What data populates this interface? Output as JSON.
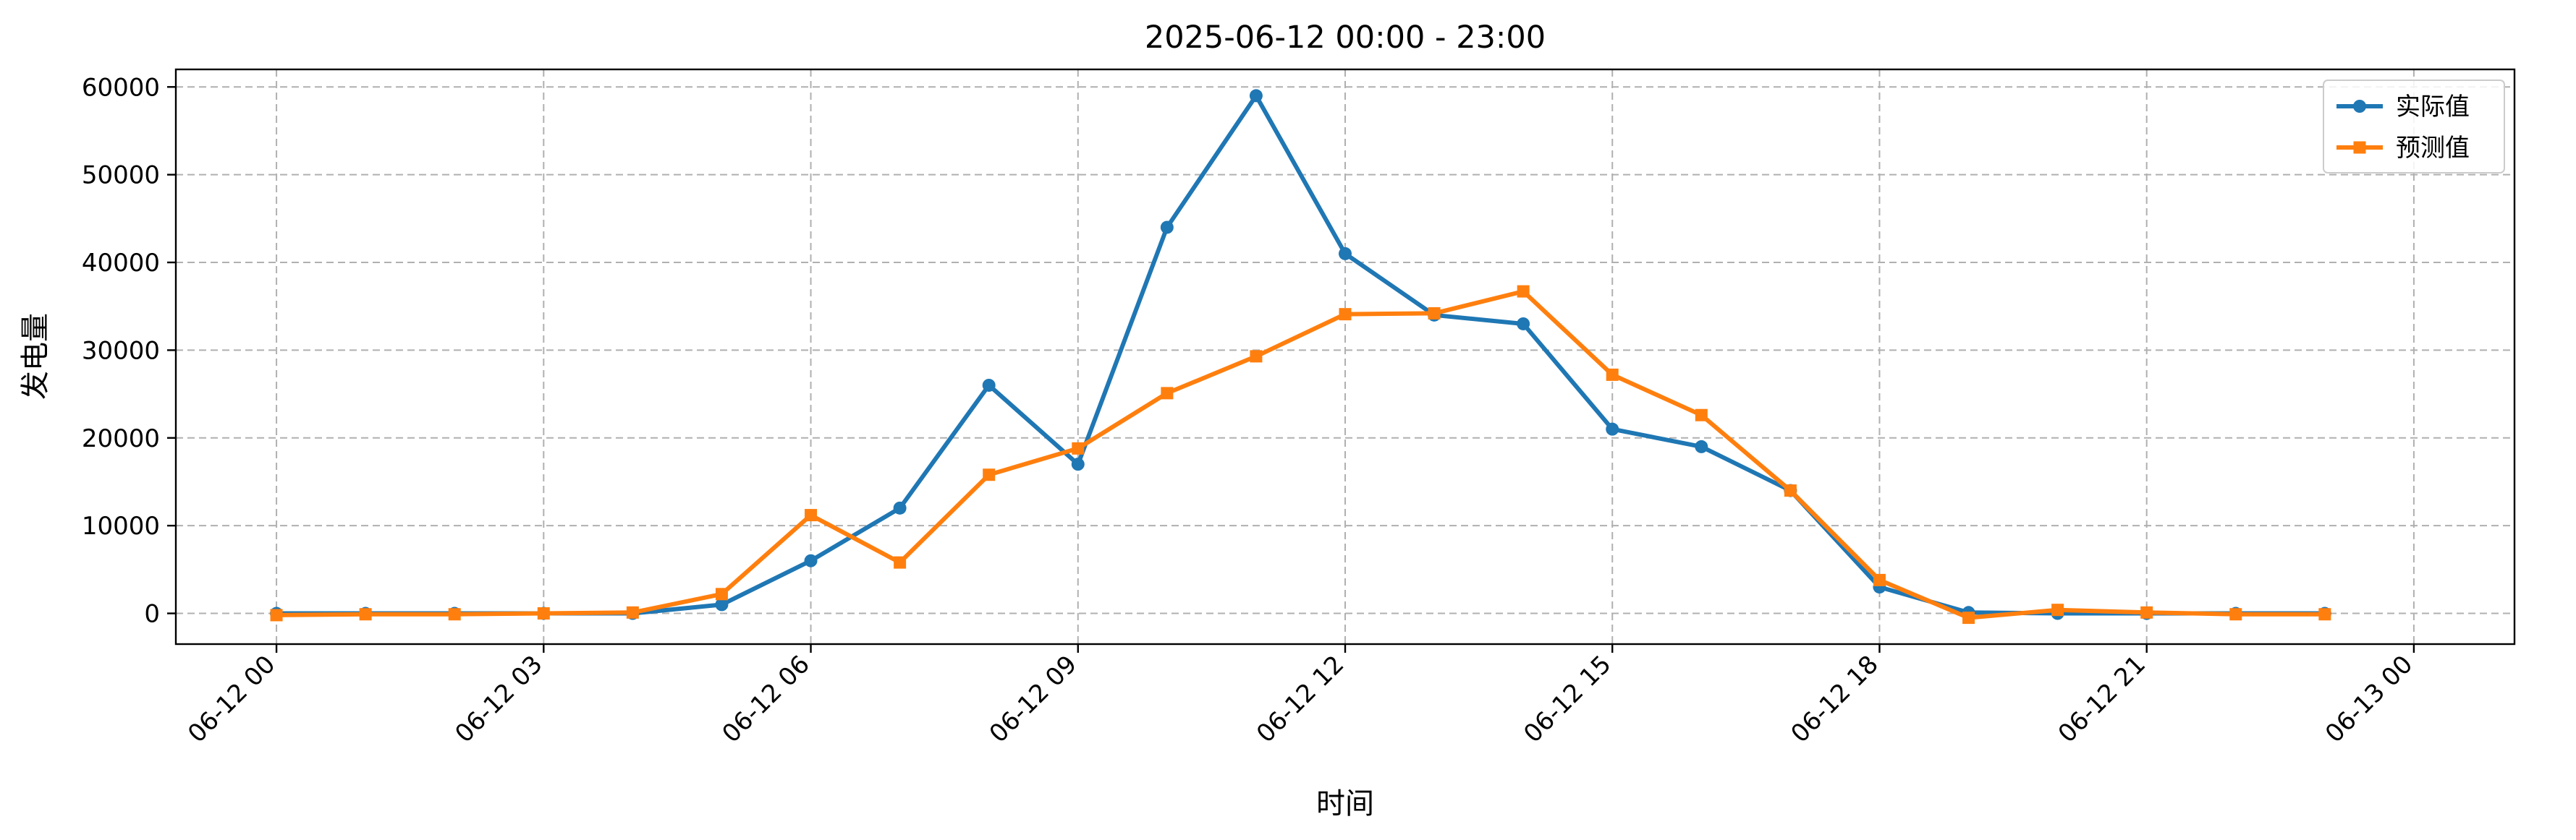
{
  "chart_data": {
    "type": "line",
    "title": "2025-06-12 00:00 - 23:00",
    "xlabel": "时间",
    "ylabel": "发电量",
    "x": [
      "00:00",
      "01:00",
      "02:00",
      "03:00",
      "04:00",
      "05:00",
      "06:00",
      "07:00",
      "08:00",
      "09:00",
      "10:00",
      "11:00",
      "12:00",
      "13:00",
      "14:00",
      "15:00",
      "16:00",
      "17:00",
      "18:00",
      "19:00",
      "20:00",
      "21:00",
      "22:00",
      "23:00"
    ],
    "x_ticks": [
      "06-12 00",
      "06-12 03",
      "06-12 06",
      "06-12 09",
      "06-12 12",
      "06-12 15",
      "06-12 18",
      "06-12 21",
      "06-13 00"
    ],
    "xlim_hours": [
      -1.13,
      25.13
    ],
    "ylim": [
      -3500,
      62000
    ],
    "y_ticks": [
      0,
      10000,
      20000,
      30000,
      40000,
      50000,
      60000
    ],
    "grid": true,
    "legend_position": "top-right",
    "series": [
      {
        "name": "实际值",
        "color": "#1f77b4",
        "marker": "circle",
        "values": [
          0,
          0,
          0,
          0,
          0,
          1000,
          6000,
          12000,
          26000,
          17000,
          44000,
          59000,
          41000,
          34000,
          33000,
          21000,
          19000,
          14000,
          3000,
          100,
          0,
          0,
          0,
          0
        ]
      },
      {
        "name": "预测值",
        "color": "#ff7f0e",
        "marker": "square",
        "values": [
          -200,
          -100,
          -100,
          0,
          100,
          2200,
          11200,
          5800,
          15800,
          18800,
          25100,
          29300,
          34100,
          34200,
          36700,
          27200,
          22600,
          14000,
          3800,
          -500,
          400,
          100,
          -100,
          -100
        ]
      }
    ]
  }
}
